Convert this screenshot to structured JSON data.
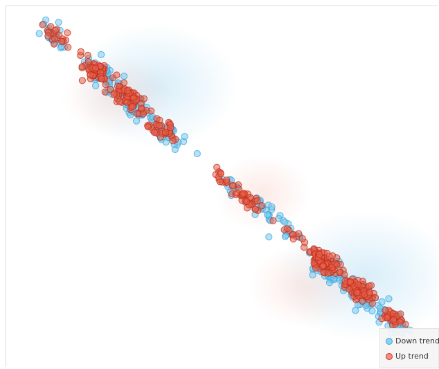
{
  "chart_data": {
    "type": "scatter",
    "title": "",
    "xlabel": "",
    "ylabel": "",
    "xlim": [
      0,
      1
    ],
    "ylim": [
      0,
      1
    ],
    "grid": false,
    "legend_position": "bottom-right",
    "series": [
      {
        "name": "Down trend",
        "color": "#4db6ea",
        "clusters": [
          {
            "x": 0.11,
            "y": 0.92,
            "n": 25,
            "spread": 0.025
          },
          {
            "x": 0.22,
            "y": 0.81,
            "n": 45,
            "spread": 0.03
          },
          {
            "x": 0.29,
            "y": 0.73,
            "n": 45,
            "spread": 0.03
          },
          {
            "x": 0.38,
            "y": 0.64,
            "n": 30,
            "spread": 0.03
          },
          {
            "x": 0.52,
            "y": 0.5,
            "n": 12,
            "spread": 0.025
          },
          {
            "x": 0.59,
            "y": 0.44,
            "n": 18,
            "spread": 0.025
          },
          {
            "x": 0.65,
            "y": 0.38,
            "n": 15,
            "spread": 0.025
          },
          {
            "x": 0.75,
            "y": 0.27,
            "n": 55,
            "spread": 0.03
          },
          {
            "x": 0.83,
            "y": 0.19,
            "n": 45,
            "spread": 0.03
          },
          {
            "x": 0.9,
            "y": 0.12,
            "n": 25,
            "spread": 0.025
          }
        ]
      },
      {
        "name": "Up trend",
        "color": "#e03a22",
        "clusters": [
          {
            "x": 0.11,
            "y": 0.93,
            "n": 20,
            "spread": 0.025
          },
          {
            "x": 0.2,
            "y": 0.83,
            "n": 55,
            "spread": 0.025
          },
          {
            "x": 0.28,
            "y": 0.75,
            "n": 70,
            "spread": 0.025
          },
          {
            "x": 0.36,
            "y": 0.66,
            "n": 35,
            "spread": 0.025
          },
          {
            "x": 0.5,
            "y": 0.53,
            "n": 15,
            "spread": 0.02
          },
          {
            "x": 0.56,
            "y": 0.47,
            "n": 35,
            "spread": 0.02
          },
          {
            "x": 0.66,
            "y": 0.37,
            "n": 10,
            "spread": 0.02
          },
          {
            "x": 0.74,
            "y": 0.29,
            "n": 80,
            "spread": 0.025
          },
          {
            "x": 0.82,
            "y": 0.21,
            "n": 75,
            "spread": 0.025
          },
          {
            "x": 0.9,
            "y": 0.13,
            "n": 30,
            "spread": 0.02
          }
        ]
      }
    ]
  },
  "legend": {
    "down_label": "Down trend",
    "up_label": "Up trend"
  }
}
